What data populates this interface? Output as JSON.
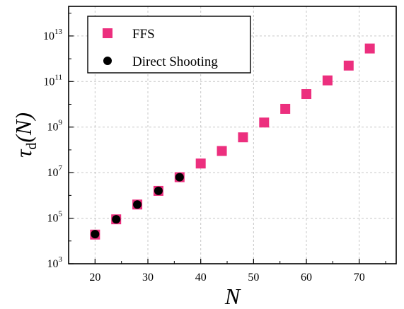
{
  "chart_data": {
    "type": "scatter",
    "y_scale": "log10",
    "xlim": [
      15,
      77
    ],
    "ylim_exponent": [
      3,
      14.3
    ],
    "x_ticks": [
      20,
      30,
      40,
      50,
      60,
      70
    ],
    "y_tick_exponents": [
      3,
      5,
      7,
      9,
      11,
      13
    ],
    "grid": true,
    "legend_position": "top-left",
    "xlabel": "N",
    "ylabel": {
      "symbol": "τ",
      "subscript": "d",
      "arg": "(N)"
    },
    "series": [
      {
        "name": "FFS",
        "marker": "square",
        "color": "#ec2f7e",
        "x": [
          20,
          24,
          28,
          32,
          36,
          40,
          44,
          48,
          52,
          56,
          60,
          64,
          68,
          72
        ],
        "log10_y": [
          4.28,
          4.95,
          5.6,
          6.2,
          6.8,
          7.4,
          7.95,
          8.55,
          9.2,
          9.8,
          10.45,
          11.05,
          11.7,
          12.45
        ]
      },
      {
        "name": "Direct Shooting",
        "marker": "circle",
        "color": "#000000",
        "x": [
          20,
          24,
          28,
          32,
          36
        ],
        "log10_y": [
          4.3,
          4.95,
          5.6,
          6.2,
          6.8
        ]
      }
    ]
  }
}
